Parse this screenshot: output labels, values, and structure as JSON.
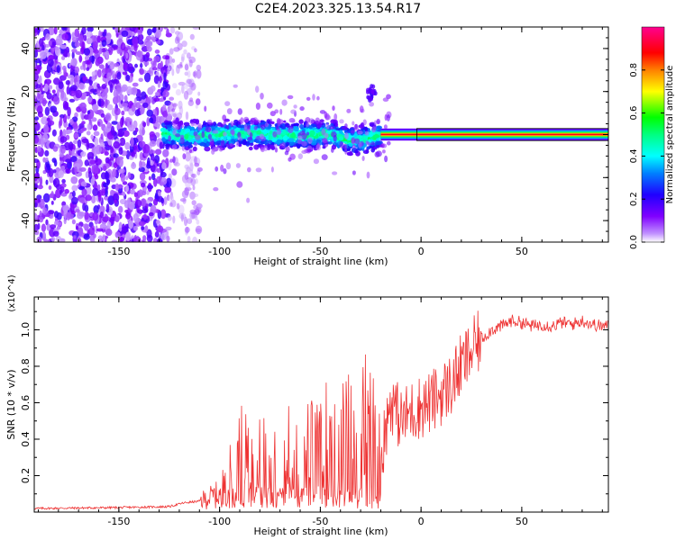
{
  "title": "C2E4.2023.325.13.54.R17",
  "chart_data": [
    {
      "type": "heatmap",
      "title": "C2E4.2023.325.13.54.R17",
      "xlabel": "Height of straight line (km)",
      "ylabel": "Frequency (Hz)",
      "xlim": [
        -192,
        93
      ],
      "ylim": [
        -50,
        50
      ],
      "x_ticks": [
        -150,
        -100,
        -50,
        0,
        50
      ],
      "y_ticks": [
        -40,
        -20,
        0,
        20,
        40
      ],
      "grid": false,
      "description_of_structure": {
        "noise_region_x": [
          -192,
          -110
        ],
        "dense_noise_edge_x": -125,
        "signal_center_freq": 0,
        "broadband_return_x": [
          -128,
          -20
        ],
        "broadband_width_hz": [
          -8,
          8
        ],
        "narrow_return_x": [
          -20,
          93
        ],
        "side_blob": {
          "x": -25,
          "y": 19
        }
      },
      "colorbar": {
        "label": "Normalized spectral amplitude",
        "range": [
          0,
          1
        ],
        "ticks": [
          0.0,
          0.2,
          0.4,
          0.6,
          0.8
        ],
        "colors": [
          "#ffffff",
          "#a040ff",
          "#3000ff",
          "#0040ff",
          "#00ffff",
          "#00ff00",
          "#ffff00",
          "#ff0000",
          "#ff00a0"
        ]
      }
    },
    {
      "type": "line",
      "xlabel": "Height of straight line (km)",
      "ylabel": "SNR (10 * v/v)",
      "y_multiplier": "(x10^4)",
      "xlim": [
        -192,
        93
      ],
      "ylim": [
        0,
        1.18
      ],
      "x_ticks": [
        -150,
        -100,
        -50,
        0,
        50
      ],
      "y_ticks": [
        0.2,
        0.4,
        0.6,
        0.8,
        1.0
      ],
      "series": [
        {
          "color": "#ee3333",
          "x": [
            -192,
            -150,
            -125,
            -118,
            -110,
            -100,
            -95,
            -90,
            -85,
            -80,
            -75,
            -70,
            -65,
            -60,
            -55,
            -50,
            -45,
            -40,
            -35,
            -30,
            -25,
            -20,
            -15,
            -10,
            -5,
            0,
            5,
            10,
            15,
            20,
            25,
            30,
            35,
            40,
            45,
            50,
            55,
            60,
            65,
            70,
            75,
            80,
            85,
            90,
            93
          ],
          "values": [
            0.02,
            0.025,
            0.03,
            0.05,
            0.06,
            0.1,
            0.2,
            0.35,
            0.28,
            0.3,
            0.32,
            0.35,
            0.38,
            0.3,
            0.35,
            0.33,
            0.5,
            0.4,
            0.45,
            0.48,
            0.5,
            0.3,
            0.62,
            0.5,
            0.55,
            0.58,
            0.6,
            0.65,
            0.7,
            0.8,
            0.88,
            0.95,
            1.0,
            1.02,
            1.05,
            1.04,
            1.02,
            1.03,
            1.02,
            1.04,
            1.03,
            1.05,
            1.03,
            1.02,
            1.02
          ]
        }
      ]
    }
  ]
}
